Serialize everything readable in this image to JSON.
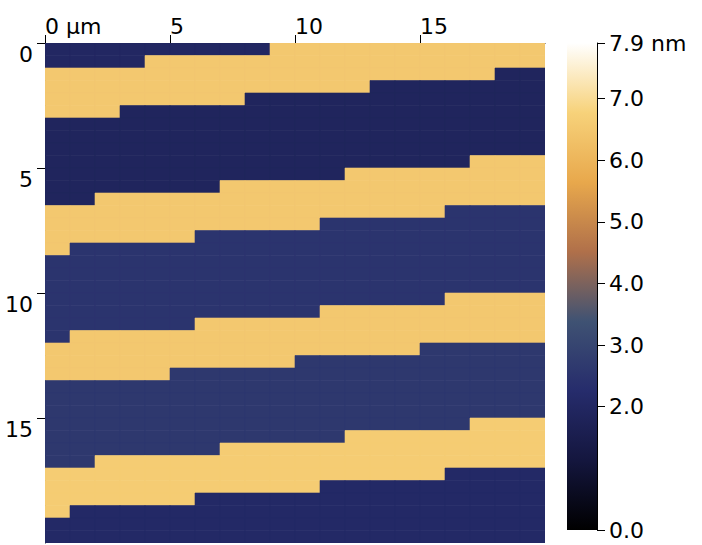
{
  "chart_data": {
    "type": "heatmap",
    "x": [
      0.5,
      1.5,
      2.5,
      3.5,
      4.5,
      5.5,
      6.5,
      7.5,
      8.5,
      9.5,
      10.5,
      11.5,
      12.5,
      13.5,
      14.5,
      15.5,
      16.5,
      17.5,
      18.5,
      19.5
    ],
    "y": [
      0.25,
      0.75,
      1.25,
      1.75,
      2.25,
      2.75,
      3.25,
      3.75,
      4.25,
      4.75,
      5.25,
      5.75,
      6.25,
      6.75,
      7.25,
      7.75,
      8.25,
      8.75,
      9.25,
      9.75,
      10.25,
      10.75,
      11.25,
      11.75,
      12.25,
      12.75,
      13.25,
      13.75,
      14.25,
      14.75,
      15.25,
      15.75,
      16.25,
      16.75,
      17.25,
      17.75,
      18.25,
      18.75,
      19.25,
      19.75
    ],
    "xlim": [
      0,
      20
    ],
    "ylim": [
      0,
      20
    ],
    "xticks": [
      {
        "value": 0,
        "label": "0 µm"
      },
      5,
      10,
      15
    ],
    "yticks": [
      0,
      5,
      10,
      15
    ],
    "z": [
      [
        2.0,
        2.0,
        2.0,
        2.0,
        2.0,
        2.0,
        2.0,
        2.0,
        2.0,
        6.5,
        6.5,
        6.5,
        6.5,
        6.5,
        6.5,
        6.5,
        6.5,
        6.5,
        6.5,
        6.5
      ],
      [
        2.0,
        2.0,
        2.0,
        2.0,
        6.5,
        6.5,
        6.5,
        6.5,
        6.5,
        6.5,
        6.5,
        6.5,
        6.5,
        6.5,
        6.5,
        6.5,
        6.5,
        6.5,
        6.5,
        6.5
      ],
      [
        6.5,
        6.5,
        6.5,
        6.5,
        6.5,
        6.5,
        6.5,
        6.5,
        6.5,
        6.5,
        6.5,
        6.5,
        6.5,
        6.5,
        6.5,
        6.5,
        6.5,
        6.5,
        1.9,
        1.9
      ],
      [
        6.5,
        6.5,
        6.5,
        6.5,
        6.5,
        6.5,
        6.5,
        6.5,
        6.5,
        6.5,
        6.5,
        6.5,
        6.5,
        1.9,
        1.9,
        1.9,
        1.9,
        1.9,
        1.9,
        1.9
      ],
      [
        6.5,
        6.5,
        6.5,
        6.5,
        6.5,
        6.5,
        6.5,
        6.5,
        1.9,
        1.9,
        1.9,
        1.9,
        1.9,
        1.9,
        1.9,
        1.9,
        1.9,
        1.9,
        1.9,
        1.9
      ],
      [
        6.5,
        6.5,
        6.5,
        1.9,
        1.9,
        1.9,
        1.9,
        1.9,
        1.9,
        1.9,
        1.9,
        1.9,
        1.9,
        1.9,
        1.9,
        1.9,
        1.9,
        1.9,
        1.9,
        1.9
      ],
      [
        1.9,
        1.9,
        1.9,
        1.9,
        1.9,
        1.9,
        1.9,
        1.9,
        1.9,
        1.9,
        1.9,
        1.9,
        1.9,
        1.9,
        1.9,
        1.9,
        1.9,
        1.9,
        1.9,
        1.9
      ],
      [
        1.9,
        1.9,
        1.9,
        1.9,
        1.9,
        1.9,
        1.9,
        1.9,
        1.9,
        1.9,
        1.9,
        1.9,
        1.9,
        1.9,
        1.9,
        1.9,
        1.9,
        1.9,
        1.9,
        1.9
      ],
      [
        1.9,
        1.9,
        1.9,
        1.9,
        1.9,
        1.9,
        1.9,
        1.9,
        1.9,
        1.9,
        1.9,
        1.9,
        1.9,
        1.9,
        1.9,
        1.9,
        1.9,
        1.9,
        1.9,
        1.9
      ],
      [
        1.9,
        1.9,
        1.9,
        1.9,
        1.9,
        1.9,
        1.9,
        1.9,
        1.9,
        1.9,
        1.9,
        1.9,
        1.9,
        1.9,
        1.9,
        1.9,
        1.9,
        6.5,
        6.5,
        6.5
      ],
      [
        1.9,
        1.9,
        1.9,
        1.9,
        1.9,
        1.9,
        1.9,
        1.9,
        1.9,
        1.9,
        1.9,
        1.9,
        6.5,
        6.5,
        6.5,
        6.5,
        6.5,
        6.5,
        6.5,
        6.5
      ],
      [
        1.9,
        1.9,
        1.9,
        1.9,
        1.9,
        1.9,
        1.9,
        6.5,
        6.5,
        6.5,
        6.5,
        6.5,
        6.5,
        6.5,
        6.5,
        6.5,
        6.5,
        6.5,
        6.5,
        6.5
      ],
      [
        1.9,
        1.9,
        6.5,
        6.5,
        6.5,
        6.5,
        6.5,
        6.5,
        6.5,
        6.5,
        6.5,
        6.5,
        6.5,
        6.5,
        6.5,
        6.5,
        6.5,
        6.5,
        6.5,
        6.5
      ],
      [
        6.5,
        6.5,
        6.5,
        6.5,
        6.5,
        6.5,
        6.5,
        6.5,
        6.5,
        6.5,
        6.5,
        6.5,
        6.5,
        6.5,
        6.5,
        6.5,
        2.5,
        2.5,
        2.5,
        2.5
      ],
      [
        6.5,
        6.5,
        6.5,
        6.5,
        6.5,
        6.5,
        6.5,
        6.5,
        6.5,
        6.5,
        6.5,
        2.5,
        2.5,
        2.5,
        2.5,
        2.5,
        2.5,
        2.5,
        2.5,
        2.5
      ],
      [
        6.5,
        6.5,
        6.5,
        6.5,
        6.5,
        6.5,
        2.5,
        2.5,
        2.5,
        2.5,
        2.5,
        2.5,
        2.5,
        2.5,
        2.5,
        2.5,
        2.5,
        2.5,
        2.5,
        2.5
      ],
      [
        6.5,
        2.5,
        2.5,
        2.5,
        2.5,
        2.5,
        2.5,
        2.5,
        2.5,
        2.5,
        2.5,
        2.5,
        2.5,
        2.5,
        2.5,
        2.5,
        2.5,
        2.5,
        2.5,
        2.5
      ],
      [
        2.5,
        2.5,
        2.5,
        2.5,
        2.5,
        2.5,
        2.5,
        2.5,
        2.5,
        2.5,
        2.5,
        2.5,
        2.5,
        2.5,
        2.5,
        2.5,
        2.5,
        2.5,
        2.5,
        2.5
      ],
      [
        2.5,
        2.5,
        2.5,
        2.5,
        2.5,
        2.5,
        2.5,
        2.5,
        2.5,
        2.5,
        2.5,
        2.5,
        2.5,
        2.5,
        2.5,
        2.5,
        2.5,
        2.5,
        2.5,
        2.5
      ],
      [
        2.5,
        2.5,
        2.5,
        2.5,
        2.5,
        2.5,
        2.5,
        2.5,
        2.5,
        2.5,
        2.5,
        2.5,
        2.5,
        2.5,
        2.5,
        2.5,
        2.5,
        2.5,
        2.5,
        2.5
      ],
      [
        2.5,
        2.5,
        2.5,
        2.5,
        2.5,
        2.5,
        2.5,
        2.5,
        2.5,
        2.5,
        2.5,
        2.5,
        2.5,
        2.5,
        2.5,
        2.5,
        6.5,
        6.5,
        6.5,
        6.5
      ],
      [
        2.5,
        2.5,
        2.5,
        2.5,
        2.5,
        2.5,
        2.5,
        2.5,
        2.5,
        2.5,
        2.5,
        6.5,
        6.5,
        6.5,
        6.5,
        6.5,
        6.5,
        6.5,
        6.5,
        6.5
      ],
      [
        2.5,
        2.5,
        2.5,
        2.5,
        2.5,
        2.5,
        6.5,
        6.5,
        6.5,
        6.5,
        6.5,
        6.5,
        6.5,
        6.5,
        6.5,
        6.5,
        6.5,
        6.5,
        6.5,
        6.5
      ],
      [
        2.5,
        6.5,
        6.5,
        6.5,
        6.5,
        6.5,
        6.5,
        6.5,
        6.5,
        6.5,
        6.5,
        6.5,
        6.5,
        6.5,
        6.5,
        6.5,
        6.5,
        6.5,
        6.5,
        6.5
      ],
      [
        6.5,
        6.5,
        6.5,
        6.5,
        6.5,
        6.5,
        6.5,
        6.5,
        6.5,
        6.5,
        6.5,
        6.5,
        6.5,
        6.5,
        6.5,
        2.6,
        2.6,
        2.6,
        2.6,
        2.6
      ],
      [
        6.5,
        6.5,
        6.5,
        6.5,
        6.5,
        6.5,
        6.5,
        6.5,
        6.5,
        6.5,
        2.6,
        2.6,
        2.6,
        2.6,
        2.6,
        2.6,
        2.6,
        2.6,
        2.6,
        2.6
      ],
      [
        6.5,
        6.5,
        6.5,
        6.5,
        6.5,
        2.6,
        2.6,
        2.6,
        2.6,
        2.6,
        2.6,
        2.6,
        2.6,
        2.6,
        2.6,
        2.6,
        2.6,
        2.6,
        2.6,
        2.6
      ],
      [
        2.6,
        2.6,
        2.6,
        2.6,
        2.6,
        2.6,
        2.6,
        2.6,
        2.6,
        2.6,
        2.6,
        2.6,
        2.6,
        2.6,
        2.6,
        2.6,
        2.6,
        2.6,
        2.6,
        2.6
      ],
      [
        2.6,
        2.6,
        2.6,
        2.6,
        2.6,
        2.6,
        2.6,
        2.6,
        2.6,
        2.6,
        2.6,
        2.6,
        2.6,
        2.6,
        2.6,
        2.6,
        2.6,
        2.6,
        2.6,
        2.6
      ],
      [
        2.6,
        2.6,
        2.6,
        2.6,
        2.6,
        2.6,
        2.6,
        2.6,
        2.6,
        2.6,
        2.6,
        2.6,
        2.6,
        2.6,
        2.6,
        2.6,
        2.6,
        2.6,
        2.6,
        2.6
      ],
      [
        2.6,
        2.6,
        2.6,
        2.6,
        2.6,
        2.6,
        2.6,
        2.6,
        2.6,
        2.6,
        2.6,
        2.6,
        2.6,
        2.6,
        2.6,
        2.6,
        2.6,
        6.6,
        6.6,
        6.6
      ],
      [
        2.6,
        2.6,
        2.6,
        2.6,
        2.6,
        2.6,
        2.6,
        2.6,
        2.6,
        2.6,
        2.6,
        2.6,
        6.6,
        6.6,
        6.6,
        6.6,
        6.6,
        6.6,
        6.6,
        6.6
      ],
      [
        2.6,
        2.6,
        2.6,
        2.6,
        2.6,
        2.6,
        2.6,
        6.6,
        6.6,
        6.6,
        6.6,
        6.6,
        6.6,
        6.6,
        6.6,
        6.6,
        6.6,
        6.6,
        6.6,
        6.6
      ],
      [
        2.6,
        2.6,
        6.6,
        6.6,
        6.6,
        6.6,
        6.6,
        6.6,
        6.6,
        6.6,
        6.6,
        6.6,
        6.6,
        6.6,
        6.6,
        6.6,
        6.6,
        6.6,
        6.6,
        6.6
      ],
      [
        6.6,
        6.6,
        6.6,
        6.6,
        6.6,
        6.6,
        6.6,
        6.6,
        6.6,
        6.6,
        6.6,
        6.6,
        6.6,
        6.6,
        6.6,
        6.6,
        2.1,
        2.1,
        2.1,
        2.1
      ],
      [
        6.6,
        6.6,
        6.6,
        6.6,
        6.6,
        6.6,
        6.6,
        6.6,
        6.6,
        6.6,
        6.6,
        2.1,
        2.1,
        2.1,
        2.1,
        2.1,
        2.1,
        2.1,
        2.1,
        2.1
      ],
      [
        6.6,
        6.6,
        6.6,
        6.6,
        6.6,
        6.6,
        2.1,
        2.1,
        2.1,
        2.1,
        2.1,
        2.1,
        2.1,
        2.1,
        2.1,
        2.1,
        2.1,
        2.1,
        2.1,
        2.1
      ],
      [
        6.6,
        2.1,
        2.1,
        2.1,
        2.1,
        2.1,
        2.1,
        2.1,
        2.1,
        2.1,
        2.1,
        2.1,
        2.1,
        2.1,
        2.1,
        2.1,
        2.1,
        2.1,
        2.1,
        2.1
      ],
      [
        2.1,
        2.1,
        2.1,
        2.1,
        2.1,
        2.1,
        2.1,
        2.1,
        2.1,
        2.1,
        2.1,
        2.1,
        2.1,
        2.1,
        2.1,
        2.1,
        2.1,
        2.1,
        2.1,
        2.1
      ],
      [
        2.1,
        2.1,
        2.1,
        2.1,
        2.1,
        2.1,
        2.1,
        2.1,
        2.1,
        2.1,
        2.1,
        2.1,
        2.1,
        2.1,
        2.1,
        2.1,
        2.1,
        2.1,
        2.1,
        2.1
      ]
    ],
    "colorbar": {
      "range": [
        0,
        7.9
      ],
      "ticks": [
        {
          "value": 0,
          "label": "0.0"
        },
        {
          "value": 2,
          "label": "2.0"
        },
        {
          "value": 3,
          "label": "3.0"
        },
        {
          "value": 4,
          "label": "4.0"
        },
        {
          "value": 5,
          "label": "5.0"
        },
        {
          "value": 6,
          "label": "6.0"
        },
        {
          "value": 7,
          "label": "7.0"
        },
        {
          "value": 7.9,
          "label": "7.9 nm"
        }
      ]
    }
  }
}
